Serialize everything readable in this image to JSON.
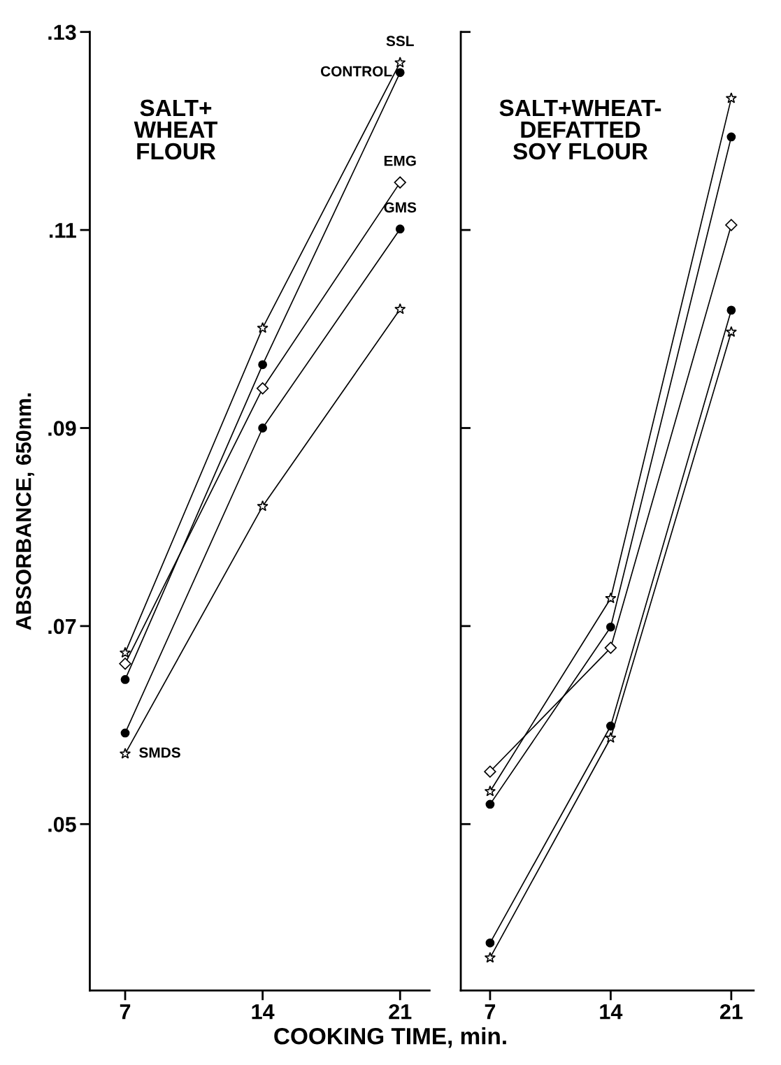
{
  "chart_data": [
    {
      "type": "line",
      "title": "SALT+\nWHEAT\nFLOUR",
      "ylabel": "ABSORBANCE, 650nm.",
      "xlabel": "COOKING TIME, min.",
      "x": [
        7,
        14,
        21
      ],
      "xlim": [
        5.2,
        22.5
      ],
      "xticks": [
        7,
        14,
        21
      ],
      "ylim": [
        0.0332,
        0.13
      ],
      "yticks": [
        {
          "value": 0.13,
          "label": ".13"
        },
        {
          "value": 0.11,
          "label": ".11"
        },
        {
          "value": 0.09,
          "label": ".09"
        },
        {
          "value": 0.07,
          "label": ".07"
        },
        {
          "value": 0.05,
          "label": ".05"
        }
      ],
      "series": [
        {
          "name": "SSL",
          "color": "#000000",
          "marker": "star",
          "values": [
            0.0673,
            0.1001,
            0.1269
          ]
        },
        {
          "name": "CONTROL",
          "color": "#000000",
          "marker": "circle",
          "values": [
            0.0646,
            0.0964,
            0.1259
          ]
        },
        {
          "name": "EMG",
          "color": "#000000",
          "marker": "diamond",
          "values": [
            0.0662,
            0.094,
            0.1148
          ]
        },
        {
          "name": "GMS",
          "color": "#000000",
          "marker": "circle",
          "values": [
            0.0592,
            0.09,
            0.1101
          ]
        },
        {
          "name": "SMDS",
          "color": "#000000",
          "marker": "star",
          "values": [
            0.0571,
            0.0821,
            0.102
          ]
        }
      ],
      "grid": false,
      "legend": false
    },
    {
      "type": "line",
      "title": "SALT+WHEAT-\nDEFATTED\nSOY FLOUR",
      "x": [
        7,
        14,
        21
      ],
      "xlim": [
        5.3,
        22.3
      ],
      "xticks": [
        7,
        14,
        21
      ],
      "ylim": [
        0.0332,
        0.13
      ],
      "yticks": [
        0.13,
        0.11,
        0.09,
        0.07,
        0.05
      ],
      "tick_labels": "x",
      "series": [
        {
          "color": "#000000",
          "marker": "star",
          "values": [
            0.0533,
            0.0728,
            0.1233
          ]
        },
        {
          "color": "#000000",
          "marker": "circle",
          "values": [
            0.052,
            0.0699,
            0.1194
          ]
        },
        {
          "color": "#000000",
          "marker": "diamond",
          "values": [
            0.0553,
            0.0678,
            0.1105
          ]
        },
        {
          "color": "#000000",
          "marker": "circle",
          "values": [
            0.038,
            0.0599,
            0.1019
          ]
        },
        {
          "color": "#000000",
          "marker": "star",
          "values": [
            0.0365,
            0.0587,
            0.0997
          ]
        }
      ],
      "grid": false,
      "legend": false
    }
  ]
}
